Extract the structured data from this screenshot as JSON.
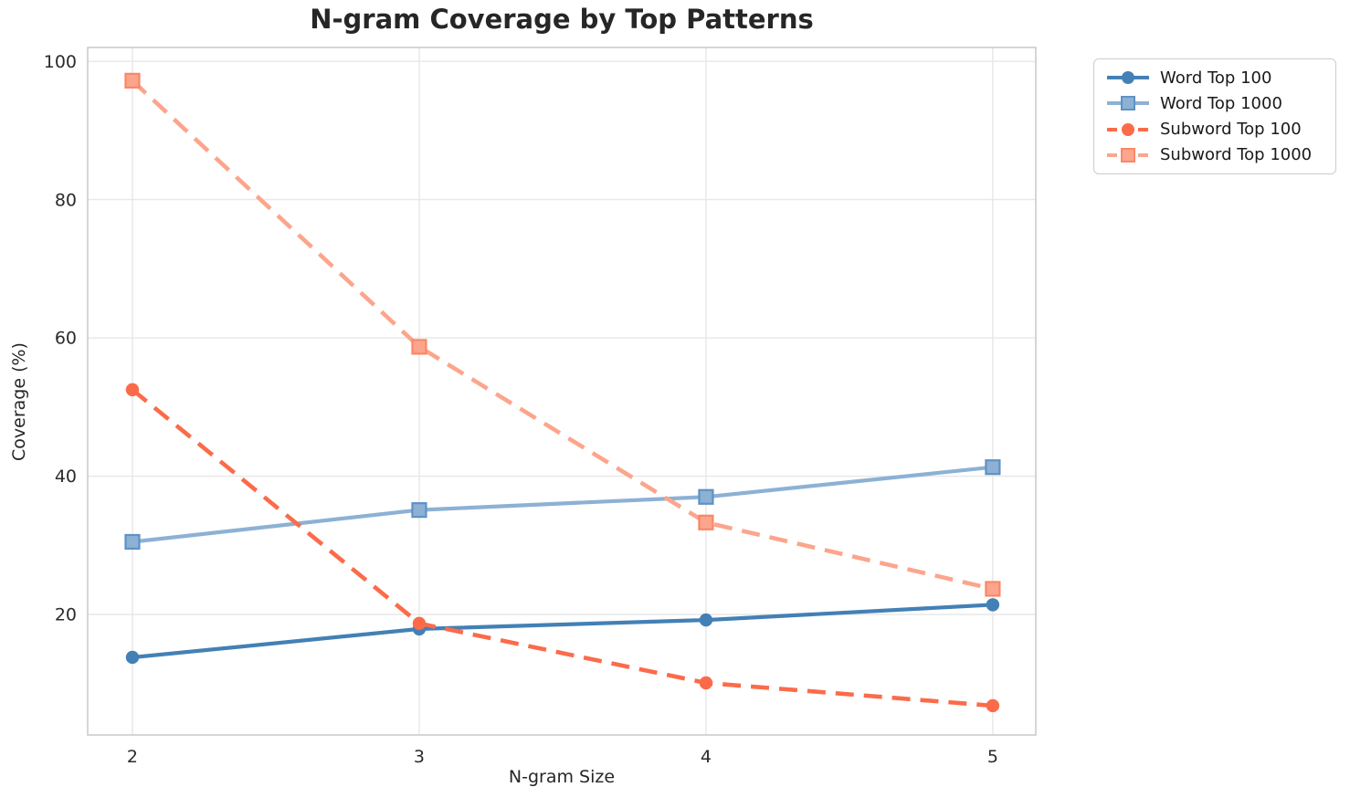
{
  "chart_data": {
    "type": "line",
    "title": "N-gram Coverage by Top Patterns",
    "xlabel": "N-gram Size",
    "ylabel": "Coverage (%)",
    "x": [
      2,
      3,
      4,
      5
    ],
    "xticks": [
      "2",
      "3",
      "4",
      "5"
    ],
    "yticks": [
      20,
      40,
      60,
      80,
      100
    ],
    "xlim": [
      1.844,
      5.15
    ],
    "ylim": [
      2.57,
      102.0
    ],
    "grid": true,
    "grid_color": "#e7e7e7",
    "spine_color": "#cbcbcb",
    "legend_position": "outside-top-right",
    "series": [
      {
        "name": "Word Top 100",
        "values": [
          13.8,
          17.9,
          19.2,
          21.4
        ],
        "color": "#4380b5",
        "edge": "#4380b5",
        "marker": "circle",
        "dash": "solid"
      },
      {
        "name": "Word Top 1000",
        "values": [
          30.5,
          35.1,
          37.0,
          41.3
        ],
        "color": "#8cb1d4",
        "edge": "#5e92c4",
        "marker": "square",
        "dash": "solid"
      },
      {
        "name": "Subword Top 100",
        "values": [
          52.5,
          18.7,
          10.1,
          6.8
        ],
        "color": "#fb6b4a",
        "edge": "#fb6b4a",
        "marker": "circle",
        "dash": "dashed"
      },
      {
        "name": "Subword Top 1000",
        "values": [
          97.2,
          58.7,
          33.3,
          23.7
        ],
        "color": "#fca58c",
        "edge": "#fa8766",
        "marker": "square",
        "dash": "dashed"
      }
    ]
  }
}
